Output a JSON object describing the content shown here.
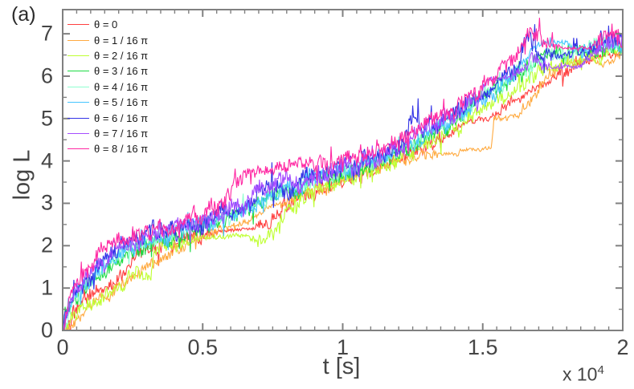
{
  "figure": {
    "panel_label": "(a)"
  },
  "chart_data": {
    "type": "line",
    "title": "",
    "xlabel": "t [s]",
    "ylabel": "log L",
    "x_multiplier": {
      "base": "x 10",
      "exp": "4"
    },
    "x_scale_note": "x values of anchors are in units of 10^4 s",
    "xlim": [
      0,
      2
    ],
    "ylim": [
      0,
      7.57
    ],
    "grid": false,
    "legend_position": "top-left-inside",
    "axis_color": "#808080",
    "text_color": "#454545",
    "x_ticks": {
      "major": [
        0,
        0.5,
        1,
        1.5,
        2
      ],
      "labels": [
        "0",
        "0.5",
        "1",
        "1.5",
        "2"
      ],
      "minor_step": 0.05
    },
    "y_ticks": {
      "major": [
        0,
        1,
        2,
        3,
        4,
        5,
        6,
        7
      ],
      "labels": [
        "0",
        "1",
        "2",
        "3",
        "4",
        "5",
        "6",
        "7"
      ],
      "minor_step": 0.5
    },
    "series": [
      {
        "label": "θ = 0",
        "color": "#ff4040",
        "seed": 11,
        "noise": 0.12,
        "anchors": [
          [
            0,
            0
          ],
          [
            0.02,
            0.2,
            0.25
          ],
          [
            0.05,
            0.5
          ],
          [
            0.1,
            0.85
          ],
          [
            0.14,
            1.0
          ],
          [
            0.18,
            1.1
          ],
          [
            0.22,
            1.3
          ],
          [
            0.245,
            1.75
          ],
          [
            0.3,
            1.95
          ],
          [
            0.36,
            2.05
          ],
          [
            0.45,
            2.2
          ],
          [
            0.52,
            2.3
          ],
          [
            0.56,
            2.35,
            0.03
          ],
          [
            0.68,
            2.4,
            0.03
          ],
          [
            0.72,
            2.55
          ],
          [
            0.78,
            2.85
          ],
          [
            0.84,
            3.1
          ],
          [
            0.9,
            3.25
          ],
          [
            0.97,
            3.45
          ],
          [
            1.05,
            3.65
          ],
          [
            1.12,
            3.8
          ],
          [
            1.2,
            4.05
          ],
          [
            1.28,
            4.3
          ],
          [
            1.36,
            4.5
          ],
          [
            1.43,
            4.9,
            0.05
          ],
          [
            1.55,
            5.05,
            0.05
          ],
          [
            1.58,
            5.3
          ],
          [
            1.65,
            5.6,
            0.06
          ],
          [
            1.74,
            5.85,
            0.06
          ],
          [
            1.78,
            6.1
          ],
          [
            1.85,
            6.3
          ],
          [
            1.92,
            6.45,
            0.05
          ],
          [
            2,
            6.6
          ]
        ]
      },
      {
        "label": "θ = 1 / 16 π",
        "color": "#ffaa40",
        "seed": 22,
        "noise": 0.1,
        "anchors": [
          [
            0,
            0
          ],
          [
            0.04,
            0.3
          ],
          [
            0.1,
            0.6
          ],
          [
            0.17,
            0.9
          ],
          [
            0.22,
            1.1
          ],
          [
            0.27,
            1.35
          ],
          [
            0.33,
            1.6
          ],
          [
            0.4,
            1.9
          ],
          [
            0.5,
            2.15
          ],
          [
            0.58,
            2.4
          ],
          [
            0.62,
            2.45,
            0.04
          ],
          [
            0.76,
            2.95,
            0.04
          ],
          [
            0.82,
            3.1
          ],
          [
            0.9,
            3.3
          ],
          [
            1,
            3.6
          ],
          [
            1.1,
            3.8
          ],
          [
            1.2,
            4.0
          ],
          [
            1.3,
            4.15
          ],
          [
            1.36,
            4.2,
            0.04
          ],
          [
            1.41,
            4.12,
            0.03
          ],
          [
            1.42,
            4.25,
            0.03
          ],
          [
            1.53,
            4.28,
            0.03
          ],
          [
            1.54,
            5.0,
            0.05
          ],
          [
            1.63,
            5.05,
            0.05
          ],
          [
            1.68,
            5.5
          ],
          [
            1.74,
            6.1
          ],
          [
            1.79,
            6.35,
            0.06
          ],
          [
            1.88,
            6.4,
            0.05
          ],
          [
            1.93,
            6.28,
            0.04
          ],
          [
            2,
            6.5
          ]
        ]
      },
      {
        "label": "θ = 2 / 16 π",
        "color": "#bfff33",
        "seed": 33,
        "noise": 0.13,
        "anchors": [
          [
            0,
            0
          ],
          [
            0.04,
            0.35
          ],
          [
            0.1,
            0.6
          ],
          [
            0.16,
            0.9
          ],
          [
            0.2,
            1.05
          ],
          [
            0.27,
            1.3
          ],
          [
            0.315,
            1.3
          ],
          [
            0.325,
            1.85
          ],
          [
            0.4,
            2.0
          ],
          [
            0.5,
            2.2,
            0.04
          ],
          [
            0.66,
            2.25,
            0.04
          ],
          [
            0.7,
            2.0
          ],
          [
            0.78,
            2.6
          ],
          [
            0.85,
            3.1
          ],
          [
            0.95,
            3.4
          ],
          [
            1.02,
            3.6
          ],
          [
            1.1,
            3.75
          ],
          [
            1.18,
            3.95
          ],
          [
            1.26,
            4.25
          ],
          [
            1.34,
            4.55
          ],
          [
            1.42,
            4.85
          ],
          [
            1.5,
            5.25
          ],
          [
            1.58,
            5.6
          ],
          [
            1.65,
            5.9
          ],
          [
            1.72,
            6.1
          ],
          [
            1.8,
            6.3
          ],
          [
            1.88,
            6.45
          ],
          [
            2,
            6.6
          ]
        ]
      },
      {
        "label": "θ = 3 / 16 π",
        "color": "#1ddb44",
        "seed": 44,
        "noise": 0.14,
        "anchors": [
          [
            0,
            0
          ],
          [
            0.02,
            0.5
          ],
          [
            0.06,
            0.9
          ],
          [
            0.12,
            1.2
          ],
          [
            0.18,
            1.55
          ],
          [
            0.25,
            1.85
          ],
          [
            0.32,
            2.05
          ],
          [
            0.4,
            2.2
          ],
          [
            0.5,
            2.45
          ],
          [
            0.6,
            2.7
          ],
          [
            0.7,
            3.0
          ],
          [
            0.8,
            3.25
          ],
          [
            0.9,
            3.5
          ],
          [
            1,
            3.7
          ],
          [
            1.1,
            3.9
          ],
          [
            1.2,
            4.2
          ],
          [
            1.3,
            4.6
          ],
          [
            1.4,
            5.0
          ],
          [
            1.5,
            5.5
          ],
          [
            1.6,
            5.9
          ],
          [
            1.68,
            6.3
          ],
          [
            1.73,
            6.6,
            0.08
          ],
          [
            1.8,
            6.5
          ],
          [
            1.9,
            6.6
          ],
          [
            2,
            6.75
          ]
        ]
      },
      {
        "label": "θ = 4 / 16 π",
        "color": "#8fffd0",
        "seed": 55,
        "noise": 0.13,
        "anchors": [
          [
            0,
            0
          ],
          [
            0.03,
            0.6
          ],
          [
            0.08,
            1.0
          ],
          [
            0.15,
            1.5
          ],
          [
            0.22,
            1.9
          ],
          [
            0.3,
            2.1
          ],
          [
            0.4,
            2.3
          ],
          [
            0.5,
            2.5
          ],
          [
            0.6,
            2.75
          ],
          [
            0.7,
            3.05
          ],
          [
            0.8,
            3.3
          ],
          [
            0.9,
            3.55
          ],
          [
            1,
            3.75
          ],
          [
            1.1,
            3.95
          ],
          [
            1.2,
            4.25
          ],
          [
            1.3,
            4.6
          ],
          [
            1.4,
            5.0
          ],
          [
            1.5,
            5.5
          ],
          [
            1.6,
            5.95
          ],
          [
            1.7,
            6.4
          ],
          [
            1.8,
            6.55
          ],
          [
            1.9,
            6.65
          ],
          [
            2,
            6.7
          ]
        ]
      },
      {
        "label": "θ = 5 / 16 π",
        "color": "#45c5ff",
        "seed": 66,
        "noise": 0.14,
        "anchors": [
          [
            0,
            0
          ],
          [
            0.02,
            0.6
          ],
          [
            0.07,
            1.05
          ],
          [
            0.13,
            1.45
          ],
          [
            0.2,
            1.85
          ],
          [
            0.28,
            2.1
          ],
          [
            0.36,
            2.25
          ],
          [
            0.45,
            2.4
          ],
          [
            0.55,
            2.6
          ],
          [
            0.65,
            2.9
          ],
          [
            0.75,
            3.2
          ],
          [
            0.85,
            3.45
          ],
          [
            0.95,
            3.65
          ],
          [
            1.05,
            3.85
          ],
          [
            1.15,
            4.1
          ],
          [
            1.25,
            4.45
          ],
          [
            1.35,
            4.8
          ],
          [
            1.45,
            5.2
          ],
          [
            1.55,
            5.7
          ],
          [
            1.62,
            6.1
          ],
          [
            1.68,
            6.75,
            0.06
          ],
          [
            1.8,
            6.8,
            0.05
          ],
          [
            1.85,
            6.6
          ],
          [
            1.93,
            6.7,
            0.06
          ],
          [
            2,
            6.7
          ]
        ]
      },
      {
        "label": "θ = 6 / 16 π",
        "color": "#3333e6",
        "seed": 77,
        "noise": 0.17,
        "anchors": [
          [
            0,
            0
          ],
          [
            0.02,
            0.7
          ],
          [
            0.06,
            1.1
          ],
          [
            0.12,
            1.5
          ],
          [
            0.2,
            2.0
          ],
          [
            0.28,
            2.2
          ],
          [
            0.36,
            2.3
          ],
          [
            0.45,
            2.45
          ],
          [
            0.55,
            2.65
          ],
          [
            0.65,
            2.95
          ],
          [
            0.75,
            3.25
          ],
          [
            0.85,
            3.5
          ],
          [
            0.95,
            3.7
          ],
          [
            1.05,
            3.9
          ],
          [
            1.15,
            4.2
          ],
          [
            1.22,
            4.5
          ],
          [
            1.25,
            5.15,
            0.2
          ],
          [
            1.28,
            4.65
          ],
          [
            1.35,
            4.9
          ],
          [
            1.45,
            5.3
          ],
          [
            1.55,
            5.8,
            0.06
          ],
          [
            1.62,
            6.2
          ],
          [
            1.66,
            7.0,
            0.2
          ],
          [
            1.7,
            6.6
          ],
          [
            1.78,
            6.5,
            0.05
          ],
          [
            1.85,
            6.6
          ],
          [
            1.93,
            6.85
          ],
          [
            2,
            6.8
          ]
        ]
      },
      {
        "label": "θ = 7 / 16 π",
        "color": "#a64dff",
        "seed": 88,
        "noise": 0.16,
        "anchors": [
          [
            0,
            0
          ],
          [
            0.02,
            0.6
          ],
          [
            0.06,
            1.05
          ],
          [
            0.12,
            1.45
          ],
          [
            0.19,
            1.9
          ],
          [
            0.27,
            2.15
          ],
          [
            0.35,
            2.3
          ],
          [
            0.45,
            2.5
          ],
          [
            0.55,
            2.7
          ],
          [
            0.65,
            3.05
          ],
          [
            0.7,
            3.3
          ],
          [
            0.75,
            3.5
          ],
          [
            0.82,
            3.45
          ],
          [
            0.9,
            3.6
          ],
          [
            1,
            3.8
          ],
          [
            1.1,
            4.0
          ],
          [
            1.2,
            4.35
          ],
          [
            1.3,
            4.75
          ],
          [
            1.4,
            5.1
          ],
          [
            1.48,
            5.5
          ],
          [
            1.52,
            5.9,
            0.05
          ],
          [
            1.6,
            6.0,
            0.06
          ],
          [
            1.68,
            6.4
          ],
          [
            1.75,
            6.2,
            0.04
          ],
          [
            1.85,
            6.25,
            0.04
          ],
          [
            1.9,
            6.6
          ],
          [
            2,
            6.9
          ]
        ]
      },
      {
        "label": "θ = 8 / 16 π",
        "color": "#ff29a3",
        "seed": 99,
        "noise": 0.15,
        "anchors": [
          [
            0,
            0
          ],
          [
            0.02,
            0.7
          ],
          [
            0.05,
            1.1
          ],
          [
            0.1,
            1.5
          ],
          [
            0.16,
            2.0
          ],
          [
            0.22,
            2.15
          ],
          [
            0.3,
            2.3
          ],
          [
            0.4,
            2.45
          ],
          [
            0.5,
            2.75
          ],
          [
            0.57,
            3.1
          ],
          [
            0.63,
            3.5
          ],
          [
            0.7,
            3.8,
            0.1
          ],
          [
            0.78,
            3.85
          ],
          [
            0.88,
            3.9
          ],
          [
            0.95,
            3.95
          ],
          [
            1.05,
            4.1
          ],
          [
            1.15,
            4.35
          ],
          [
            1.25,
            4.7
          ],
          [
            1.35,
            5.05
          ],
          [
            1.45,
            5.5
          ],
          [
            1.55,
            6.0
          ],
          [
            1.62,
            6.5
          ],
          [
            1.66,
            7.15,
            0.2
          ],
          [
            1.7,
            7.0,
            0.18
          ],
          [
            1.74,
            6.7
          ],
          [
            1.78,
            6.65,
            0.03
          ],
          [
            1.88,
            6.67,
            0.03
          ],
          [
            1.93,
            6.9
          ],
          [
            1.97,
            7.05
          ],
          [
            2,
            6.6
          ]
        ]
      }
    ]
  }
}
